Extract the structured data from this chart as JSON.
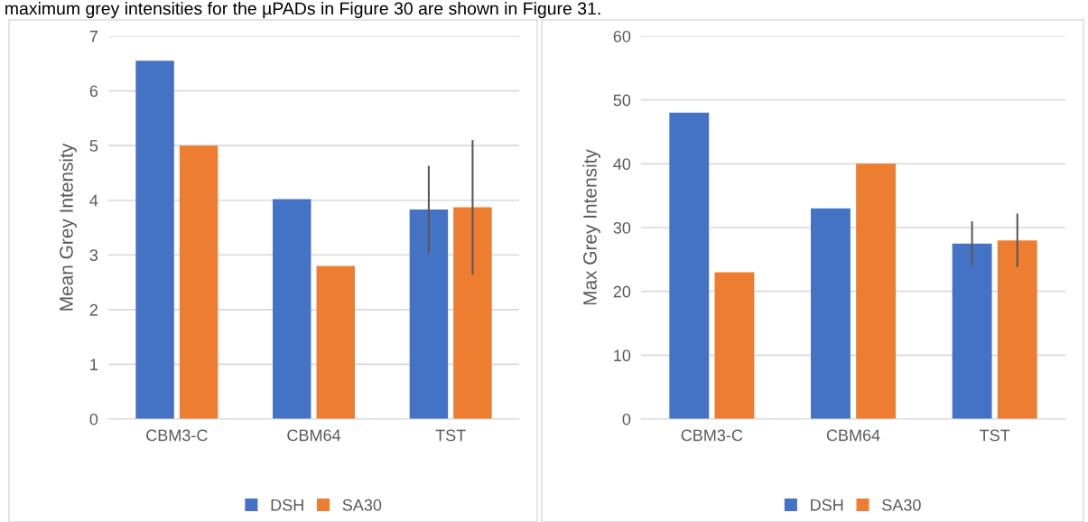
{
  "chart_data": [
    {
      "type": "bar",
      "ylabel": "Mean Grey Intensity",
      "categories": [
        "CBM3-C",
        "CBM64",
        "TST"
      ],
      "ylim": [
        0,
        7
      ],
      "yticks": [
        0,
        1,
        2,
        3,
        4,
        5,
        6,
        7
      ],
      "grid": "y",
      "legend": "bottom",
      "annotations": [
        "maximum grey intensities for the µPADs in Figure 30 are shown in Figure 31."
      ],
      "series": [
        {
          "name": "DSH",
          "color": "#4472c4",
          "values": [
            6.55,
            4.02,
            3.83
          ],
          "errors": [
            null,
            null,
            0.8
          ]
        },
        {
          "name": "SA30",
          "color": "#ed7d31",
          "values": [
            5.0,
            2.8,
            3.87
          ],
          "errors": [
            null,
            null,
            1.23
          ]
        }
      ]
    },
    {
      "type": "bar",
      "ylabel": "Max Grey Intensity",
      "categories": [
        "CBM3-C",
        "CBM64",
        "TST"
      ],
      "ylim": [
        0,
        60
      ],
      "yticks": [
        0,
        10,
        20,
        30,
        40,
        50,
        60
      ],
      "grid": "y",
      "legend": "bottom",
      "series": [
        {
          "name": "DSH",
          "color": "#4472c4",
          "values": [
            48,
            33,
            27.5
          ],
          "errors": [
            null,
            null,
            3.5
          ]
        },
        {
          "name": "SA30",
          "color": "#ed7d31",
          "values": [
            23,
            40,
            28
          ],
          "errors": [
            null,
            null,
            4.2
          ]
        }
      ]
    }
  ]
}
